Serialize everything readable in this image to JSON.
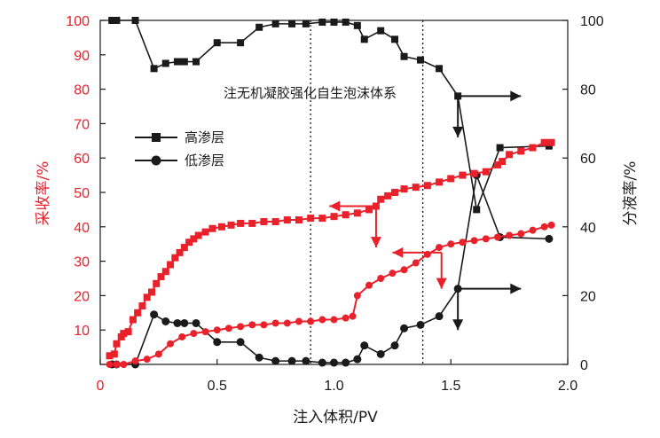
{
  "chart_data": {
    "type": "line",
    "xlabel": "注入体积/PV",
    "ylabel_left": "采收率/%",
    "ylabel_right": "分液率/%",
    "xlim": [
      0,
      2.0
    ],
    "ylim_left": [
      0,
      100
    ],
    "ylim_right": [
      0,
      100
    ],
    "x_ticks": [
      "0",
      "0.5",
      "1.0",
      "1.5",
      "2.0"
    ],
    "y_left_ticks": [
      "0",
      "10",
      "20",
      "30",
      "40",
      "50",
      "60",
      "70",
      "80",
      "90",
      "100"
    ],
    "y_right_ticks": [
      "0",
      "20",
      "40",
      "60",
      "80",
      "100"
    ],
    "annotation": "注无机凝胶强化自生泡沫体系",
    "grid": false,
    "vlines": [
      0.9,
      1.38
    ],
    "legend_position": "upper-left",
    "colors": {
      "recovery": "#e8212b",
      "fractional": "#1a1a1a"
    },
    "series": [
      {
        "name": "高渗层",
        "axis": "right",
        "marker": "square",
        "color": "#1a1a1a",
        "points": [
          [
            0.05,
            100
          ],
          [
            0.07,
            100
          ],
          [
            0.15,
            100
          ],
          [
            0.23,
            86
          ],
          [
            0.28,
            87.5
          ],
          [
            0.33,
            88
          ],
          [
            0.36,
            88
          ],
          [
            0.41,
            88
          ],
          [
            0.5,
            93.5
          ],
          [
            0.6,
            93.5
          ],
          [
            0.68,
            98
          ],
          [
            0.75,
            99
          ],
          [
            0.82,
            99
          ],
          [
            0.88,
            99
          ],
          [
            0.95,
            99.5
          ],
          [
            1.0,
            99.5
          ],
          [
            1.05,
            99.5
          ],
          [
            1.1,
            98.5
          ],
          [
            1.13,
            94.5
          ],
          [
            1.2,
            97
          ],
          [
            1.26,
            94.5
          ],
          [
            1.3,
            89.5
          ],
          [
            1.37,
            88.5
          ],
          [
            1.45,
            86
          ],
          [
            1.53,
            78
          ],
          [
            1.61,
            45
          ],
          [
            1.71,
            63
          ],
          [
            1.92,
            63.5
          ]
        ]
      },
      {
        "name": "低渗层",
        "axis": "right",
        "marker": "circle",
        "color": "#1a1a1a",
        "points": [
          [
            0.05,
            0
          ],
          [
            0.07,
            0
          ],
          [
            0.15,
            0
          ],
          [
            0.23,
            14.5
          ],
          [
            0.28,
            12.5
          ],
          [
            0.33,
            12
          ],
          [
            0.36,
            12
          ],
          [
            0.41,
            12
          ],
          [
            0.5,
            6.5
          ],
          [
            0.6,
            6.5
          ],
          [
            0.68,
            2
          ],
          [
            0.75,
            1
          ],
          [
            0.82,
            1
          ],
          [
            0.88,
            1
          ],
          [
            0.95,
            0.5
          ],
          [
            1.0,
            0.5
          ],
          [
            1.05,
            0.5
          ],
          [
            1.1,
            1.5
          ],
          [
            1.13,
            5.5
          ],
          [
            1.2,
            3
          ],
          [
            1.26,
            5.5
          ],
          [
            1.3,
            10.5
          ],
          [
            1.37,
            11.5
          ],
          [
            1.45,
            14
          ],
          [
            1.53,
            22
          ],
          [
            1.61,
            55
          ],
          [
            1.71,
            37
          ],
          [
            1.92,
            36.5
          ]
        ]
      },
      {
        "name": "",
        "axis": "left",
        "marker": "square",
        "color": "#e8212b",
        "points": [
          [
            0.04,
            2.5
          ],
          [
            0.06,
            3
          ],
          [
            0.07,
            6
          ],
          [
            0.09,
            8
          ],
          [
            0.1,
            9
          ],
          [
            0.12,
            9.5
          ],
          [
            0.14,
            13
          ],
          [
            0.16,
            15
          ],
          [
            0.18,
            17
          ],
          [
            0.2,
            19.5
          ],
          [
            0.22,
            21
          ],
          [
            0.24,
            23.5
          ],
          [
            0.26,
            25.5
          ],
          [
            0.28,
            27
          ],
          [
            0.3,
            29
          ],
          [
            0.32,
            31
          ],
          [
            0.34,
            32.5
          ],
          [
            0.36,
            34
          ],
          [
            0.38,
            35.5
          ],
          [
            0.4,
            36.5
          ],
          [
            0.42,
            37.5
          ],
          [
            0.45,
            38.5
          ],
          [
            0.48,
            39.5
          ],
          [
            0.52,
            40
          ],
          [
            0.56,
            40.5
          ],
          [
            0.6,
            41
          ],
          [
            0.65,
            41
          ],
          [
            0.7,
            41.5
          ],
          [
            0.75,
            41.5
          ],
          [
            0.8,
            42
          ],
          [
            0.85,
            42
          ],
          [
            0.9,
            42.5
          ],
          [
            0.95,
            42.5
          ],
          [
            1.0,
            43
          ],
          [
            1.05,
            43.5
          ],
          [
            1.1,
            44
          ],
          [
            1.15,
            45
          ],
          [
            1.18,
            46
          ],
          [
            1.2,
            48
          ],
          [
            1.23,
            49
          ],
          [
            1.26,
            50
          ],
          [
            1.3,
            51
          ],
          [
            1.35,
            51.5
          ],
          [
            1.4,
            52
          ],
          [
            1.45,
            53
          ],
          [
            1.5,
            54
          ],
          [
            1.55,
            55
          ],
          [
            1.6,
            55.5
          ],
          [
            1.65,
            56
          ],
          [
            1.7,
            58
          ],
          [
            1.72,
            59
          ],
          [
            1.75,
            61
          ],
          [
            1.8,
            62
          ],
          [
            1.85,
            63
          ],
          [
            1.9,
            64.5
          ],
          [
            1.93,
            64.5
          ]
        ]
      },
      {
        "name": "",
        "axis": "left",
        "marker": "circle",
        "color": "#e8212b",
        "points": [
          [
            0.04,
            0
          ],
          [
            0.07,
            0
          ],
          [
            0.1,
            0
          ],
          [
            0.15,
            1
          ],
          [
            0.2,
            1.5
          ],
          [
            0.25,
            3
          ],
          [
            0.3,
            6
          ],
          [
            0.35,
            8
          ],
          [
            0.4,
            9
          ],
          [
            0.45,
            9.5
          ],
          [
            0.5,
            10
          ],
          [
            0.55,
            10.5
          ],
          [
            0.6,
            11
          ],
          [
            0.65,
            11.5
          ],
          [
            0.7,
            11.5
          ],
          [
            0.75,
            12
          ],
          [
            0.8,
            12
          ],
          [
            0.85,
            12.5
          ],
          [
            0.9,
            12.5
          ],
          [
            0.95,
            13
          ],
          [
            1.0,
            13
          ],
          [
            1.05,
            13.5
          ],
          [
            1.08,
            14
          ],
          [
            1.1,
            20
          ],
          [
            1.15,
            23
          ],
          [
            1.2,
            25
          ],
          [
            1.25,
            26.5
          ],
          [
            1.3,
            27.5
          ],
          [
            1.35,
            29.5
          ],
          [
            1.4,
            32
          ],
          [
            1.45,
            34
          ],
          [
            1.5,
            35
          ],
          [
            1.55,
            35.5
          ],
          [
            1.6,
            36
          ],
          [
            1.65,
            36.5
          ],
          [
            1.7,
            37
          ],
          [
            1.75,
            37.5
          ],
          [
            1.8,
            38
          ],
          [
            1.85,
            39
          ],
          [
            1.9,
            40
          ],
          [
            1.93,
            40.5
          ]
        ]
      }
    ]
  }
}
